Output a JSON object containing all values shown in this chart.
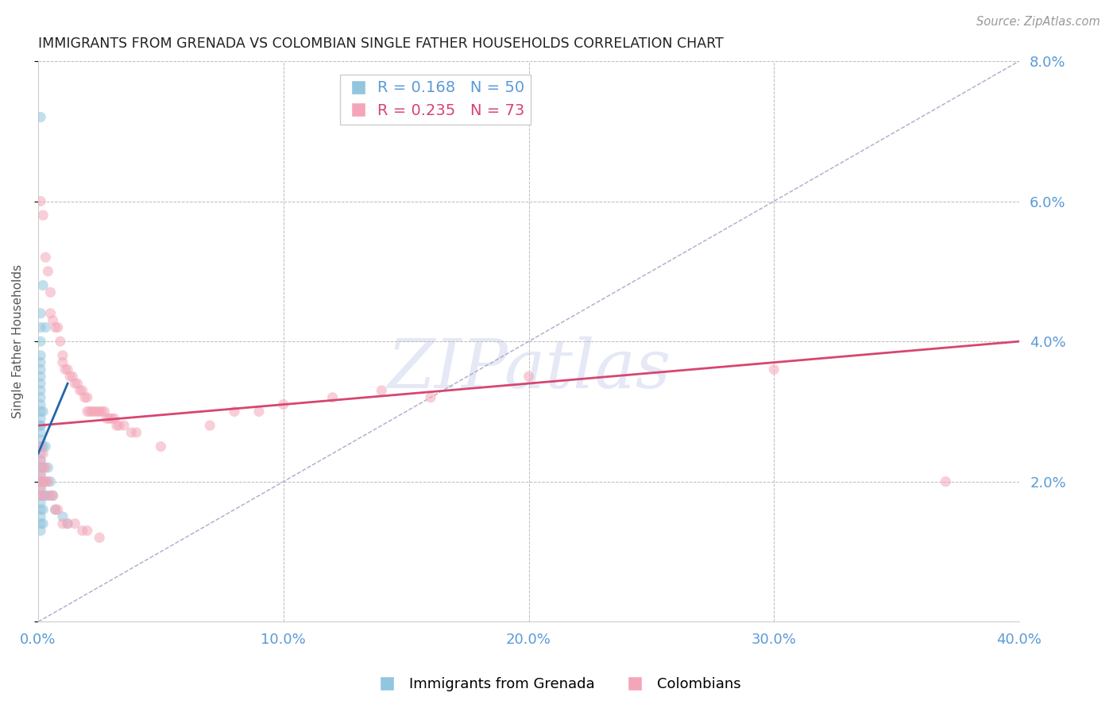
{
  "title": "IMMIGRANTS FROM GRENADA VS COLOMBIAN SINGLE FATHER HOUSEHOLDS CORRELATION CHART",
  "source_text": "Source: ZipAtlas.com",
  "ylabel": "Single Father Households",
  "xlabel_grenada": "Immigrants from Grenada",
  "xlabel_colombian": "Colombians",
  "legend_grenada": {
    "R": 0.168,
    "N": 50
  },
  "legend_colombian": {
    "R": 0.235,
    "N": 73
  },
  "xlim": [
    0.0,
    0.4
  ],
  "ylim": [
    0.0,
    0.08
  ],
  "yticks_right": [
    0.02,
    0.04,
    0.06,
    0.08
  ],
  "xticks": [
    0.0,
    0.1,
    0.2,
    0.3,
    0.4
  ],
  "color_blue": "#92C5DE",
  "color_pink": "#F4A6B8",
  "color_blue_line": "#2166AC",
  "color_pink_line": "#D6466F",
  "color_diag": "#AAAACC",
  "color_axis_labels": "#5B9BD5",
  "color_title": "#222222",
  "color_grid": "#BBBBBB",
  "blue_dots": [
    [
      0.001,
      0.072
    ],
    [
      0.002,
      0.048
    ],
    [
      0.003,
      0.042
    ],
    [
      0.001,
      0.044
    ],
    [
      0.001,
      0.042
    ],
    [
      0.001,
      0.04
    ],
    [
      0.001,
      0.038
    ],
    [
      0.001,
      0.037
    ],
    [
      0.001,
      0.036
    ],
    [
      0.001,
      0.035
    ],
    [
      0.001,
      0.034
    ],
    [
      0.001,
      0.033
    ],
    [
      0.001,
      0.032
    ],
    [
      0.001,
      0.031
    ],
    [
      0.001,
      0.03
    ],
    [
      0.001,
      0.029
    ],
    [
      0.001,
      0.028
    ],
    [
      0.001,
      0.028
    ],
    [
      0.001,
      0.027
    ],
    [
      0.001,
      0.026
    ],
    [
      0.001,
      0.025
    ],
    [
      0.001,
      0.024
    ],
    [
      0.001,
      0.023
    ],
    [
      0.001,
      0.022
    ],
    [
      0.001,
      0.021
    ],
    [
      0.001,
      0.02
    ],
    [
      0.001,
      0.019
    ],
    [
      0.001,
      0.018
    ],
    [
      0.001,
      0.017
    ],
    [
      0.001,
      0.016
    ],
    [
      0.001,
      0.015
    ],
    [
      0.001,
      0.014
    ],
    [
      0.001,
      0.013
    ],
    [
      0.002,
      0.03
    ],
    [
      0.002,
      0.025
    ],
    [
      0.002,
      0.022
    ],
    [
      0.002,
      0.02
    ],
    [
      0.002,
      0.018
    ],
    [
      0.002,
      0.016
    ],
    [
      0.002,
      0.014
    ],
    [
      0.003,
      0.025
    ],
    [
      0.003,
      0.02
    ],
    [
      0.003,
      0.018
    ],
    [
      0.004,
      0.022
    ],
    [
      0.004,
      0.018
    ],
    [
      0.005,
      0.02
    ],
    [
      0.006,
      0.018
    ],
    [
      0.007,
      0.016
    ],
    [
      0.01,
      0.015
    ],
    [
      0.012,
      0.014
    ]
  ],
  "pink_dots": [
    [
      0.001,
      0.06
    ],
    [
      0.002,
      0.058
    ],
    [
      0.003,
      0.052
    ],
    [
      0.004,
      0.05
    ],
    [
      0.005,
      0.047
    ],
    [
      0.005,
      0.044
    ],
    [
      0.006,
      0.043
    ],
    [
      0.007,
      0.042
    ],
    [
      0.008,
      0.042
    ],
    [
      0.009,
      0.04
    ],
    [
      0.01,
      0.038
    ],
    [
      0.01,
      0.037
    ],
    [
      0.011,
      0.036
    ],
    [
      0.012,
      0.036
    ],
    [
      0.013,
      0.035
    ],
    [
      0.014,
      0.035
    ],
    [
      0.015,
      0.034
    ],
    [
      0.016,
      0.034
    ],
    [
      0.017,
      0.033
    ],
    [
      0.018,
      0.033
    ],
    [
      0.019,
      0.032
    ],
    [
      0.02,
      0.032
    ],
    [
      0.02,
      0.03
    ],
    [
      0.021,
      0.03
    ],
    [
      0.022,
      0.03
    ],
    [
      0.023,
      0.03
    ],
    [
      0.024,
      0.03
    ],
    [
      0.025,
      0.03
    ],
    [
      0.026,
      0.03
    ],
    [
      0.027,
      0.03
    ],
    [
      0.028,
      0.029
    ],
    [
      0.029,
      0.029
    ],
    [
      0.03,
      0.029
    ],
    [
      0.031,
      0.029
    ],
    [
      0.032,
      0.028
    ],
    [
      0.033,
      0.028
    ],
    [
      0.035,
      0.028
    ],
    [
      0.038,
      0.027
    ],
    [
      0.04,
      0.027
    ],
    [
      0.001,
      0.025
    ],
    [
      0.001,
      0.023
    ],
    [
      0.001,
      0.021
    ],
    [
      0.001,
      0.02
    ],
    [
      0.001,
      0.019
    ],
    [
      0.001,
      0.018
    ],
    [
      0.002,
      0.024
    ],
    [
      0.002,
      0.022
    ],
    [
      0.002,
      0.02
    ],
    [
      0.002,
      0.018
    ],
    [
      0.003,
      0.022
    ],
    [
      0.003,
      0.02
    ],
    [
      0.004,
      0.02
    ],
    [
      0.005,
      0.018
    ],
    [
      0.006,
      0.018
    ],
    [
      0.007,
      0.016
    ],
    [
      0.008,
      0.016
    ],
    [
      0.01,
      0.014
    ],
    [
      0.012,
      0.014
    ],
    [
      0.015,
      0.014
    ],
    [
      0.018,
      0.013
    ],
    [
      0.02,
      0.013
    ],
    [
      0.025,
      0.012
    ],
    [
      0.05,
      0.025
    ],
    [
      0.07,
      0.028
    ],
    [
      0.08,
      0.03
    ],
    [
      0.09,
      0.03
    ],
    [
      0.1,
      0.031
    ],
    [
      0.12,
      0.032
    ],
    [
      0.14,
      0.033
    ],
    [
      0.16,
      0.032
    ],
    [
      0.2,
      0.035
    ],
    [
      0.3,
      0.036
    ],
    [
      0.37,
      0.02
    ]
  ],
  "pink_line": [
    0.0,
    0.4,
    0.028,
    0.04
  ],
  "blue_line_x": [
    0.0,
    0.012
  ],
  "blue_line_y": [
    0.024,
    0.034
  ],
  "diag_line": [
    0.0,
    0.4,
    0.0,
    0.08
  ],
  "background_color": "#FFFFFF"
}
